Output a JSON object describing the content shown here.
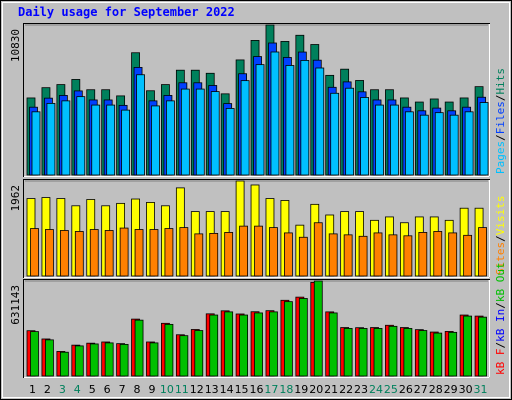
{
  "chart_data": [
    {
      "type": "bar",
      "title": "Daily usage for September 2022",
      "ylim": [
        0,
        10830
      ],
      "yticks": [
        10830
      ],
      "legend_separator": "/",
      "legend_reversed": true,
      "series": [
        {
          "name": "Hits",
          "color": "#00805c",
          "values": [
            5563,
            6305,
            6528,
            6899,
            6157,
            6157,
            5712,
            8827,
            6083,
            6528,
            7566,
            7566,
            7344,
            5860,
            8308,
            9717,
            10830,
            9643,
            10088,
            9421,
            7195,
            7640,
            6824,
            6157,
            6157,
            5563,
            5267,
            5489,
            5267,
            5563,
            6379
          ]
        },
        {
          "name": "Files",
          "color": "#0040ff",
          "values": [
            4895,
            5548,
            5745,
            6071,
            5418,
            5418,
            5027,
            7768,
            5353,
            5745,
            6658,
            6658,
            6463,
            5157,
            7311,
            8551,
            9530,
            8486,
            8877,
            8290,
            6332,
            6723,
            6005,
            5418,
            5418,
            4895,
            4635,
            4830,
            4635,
            4895,
            5614
          ]
        },
        {
          "name": "Pages",
          "color": "#00c0ff",
          "values": [
            4562,
            5170,
            5353,
            5657,
            5049,
            5049,
            4684,
            7238,
            4988,
            5353,
            6204,
            6204,
            6022,
            4805,
            6813,
            7968,
            8881,
            7907,
            8272,
            7725,
            5900,
            6265,
            5596,
            5049,
            5049,
            4562,
            4319,
            4501,
            4319,
            4562,
            5231
          ]
        }
      ]
    },
    {
      "type": "bar",
      "ylim": [
        0,
        1962
      ],
      "yticks": [
        1962
      ],
      "legend_separator": "/",
      "legend_reversed": true,
      "series": [
        {
          "name": "Visits",
          "color": "#ffff00",
          "values": [
            1600,
            1620,
            1600,
            1450,
            1580,
            1450,
            1500,
            1590,
            1520,
            1450,
            1820,
            1330,
            1330,
            1330,
            1962,
            1880,
            1600,
            1560,
            1050,
            1480,
            1260,
            1330,
            1330,
            1150,
            1220,
            1100,
            1220,
            1220,
            1150,
            1400,
            1400
          ]
        },
        {
          "name": "Sites",
          "color": "#ff8000",
          "values": [
            980,
            960,
            940,
            920,
            960,
            940,
            990,
            960,
            960,
            980,
            1000,
            870,
            880,
            900,
            1030,
            1030,
            1000,
            890,
            800,
            1100,
            870,
            850,
            820,
            890,
            850,
            830,
            900,
            920,
            890,
            840,
            1000
          ]
        }
      ]
    },
    {
      "type": "bar",
      "ylim": [
        0,
        631143
      ],
      "yticks": [
        631143
      ],
      "legend_separator": "/",
      "legend_reversed": false,
      "categories": [
        "1",
        "2",
        "3",
        "4",
        "5",
        "6",
        "7",
        "8",
        "9",
        "10",
        "11",
        "12",
        "13",
        "14",
        "15",
        "16",
        "17",
        "18",
        "19",
        "20",
        "21",
        "22",
        "23",
        "24",
        "25",
        "26",
        "27",
        "28",
        "29",
        "30",
        "31"
      ],
      "category_colors": [
        "#000000",
        "#000000",
        "#00805c",
        "#00805c",
        "#000000",
        "#000000",
        "#000000",
        "#000000",
        "#000000",
        "#00805c",
        "#00805c",
        "#000000",
        "#000000",
        "#000000",
        "#000000",
        "#000000",
        "#00805c",
        "#00805c",
        "#000000",
        "#000000",
        "#000000",
        "#000000",
        "#000000",
        "#00805c",
        "#00805c",
        "#000000",
        "#000000",
        "#000000",
        "#000000",
        "#000000",
        "#00805c"
      ],
      "series": [
        {
          "name": "kB F",
          "color": "#ff0000",
          "values": [
            301000,
            246000,
            163000,
            205000,
            218000,
            226000,
            215000,
            378000,
            226000,
            350000,
            274000,
            309000,
            413000,
            433000,
            412000,
            427000,
            434000,
            503000,
            524000,
            622000,
            426000,
            322000,
            321000,
            322000,
            337000,
            322000,
            308000,
            292000,
            296000,
            405000,
            398000
          ]
        },
        {
          "name": "kB In",
          "color": "#0000ff"
        },
        {
          "name": "kB Out",
          "color": "#00c000",
          "values": [
            295000,
            240000,
            158000,
            200000,
            213000,
            220000,
            210000,
            371000,
            220000,
            343000,
            268000,
            302000,
            405000,
            426000,
            405000,
            419000,
            426000,
            494000,
            515000,
            631143,
            419000,
            316000,
            316000,
            316000,
            330000,
            316000,
            302000,
            285000,
            290000,
            398000,
            391000
          ]
        }
      ]
    }
  ]
}
